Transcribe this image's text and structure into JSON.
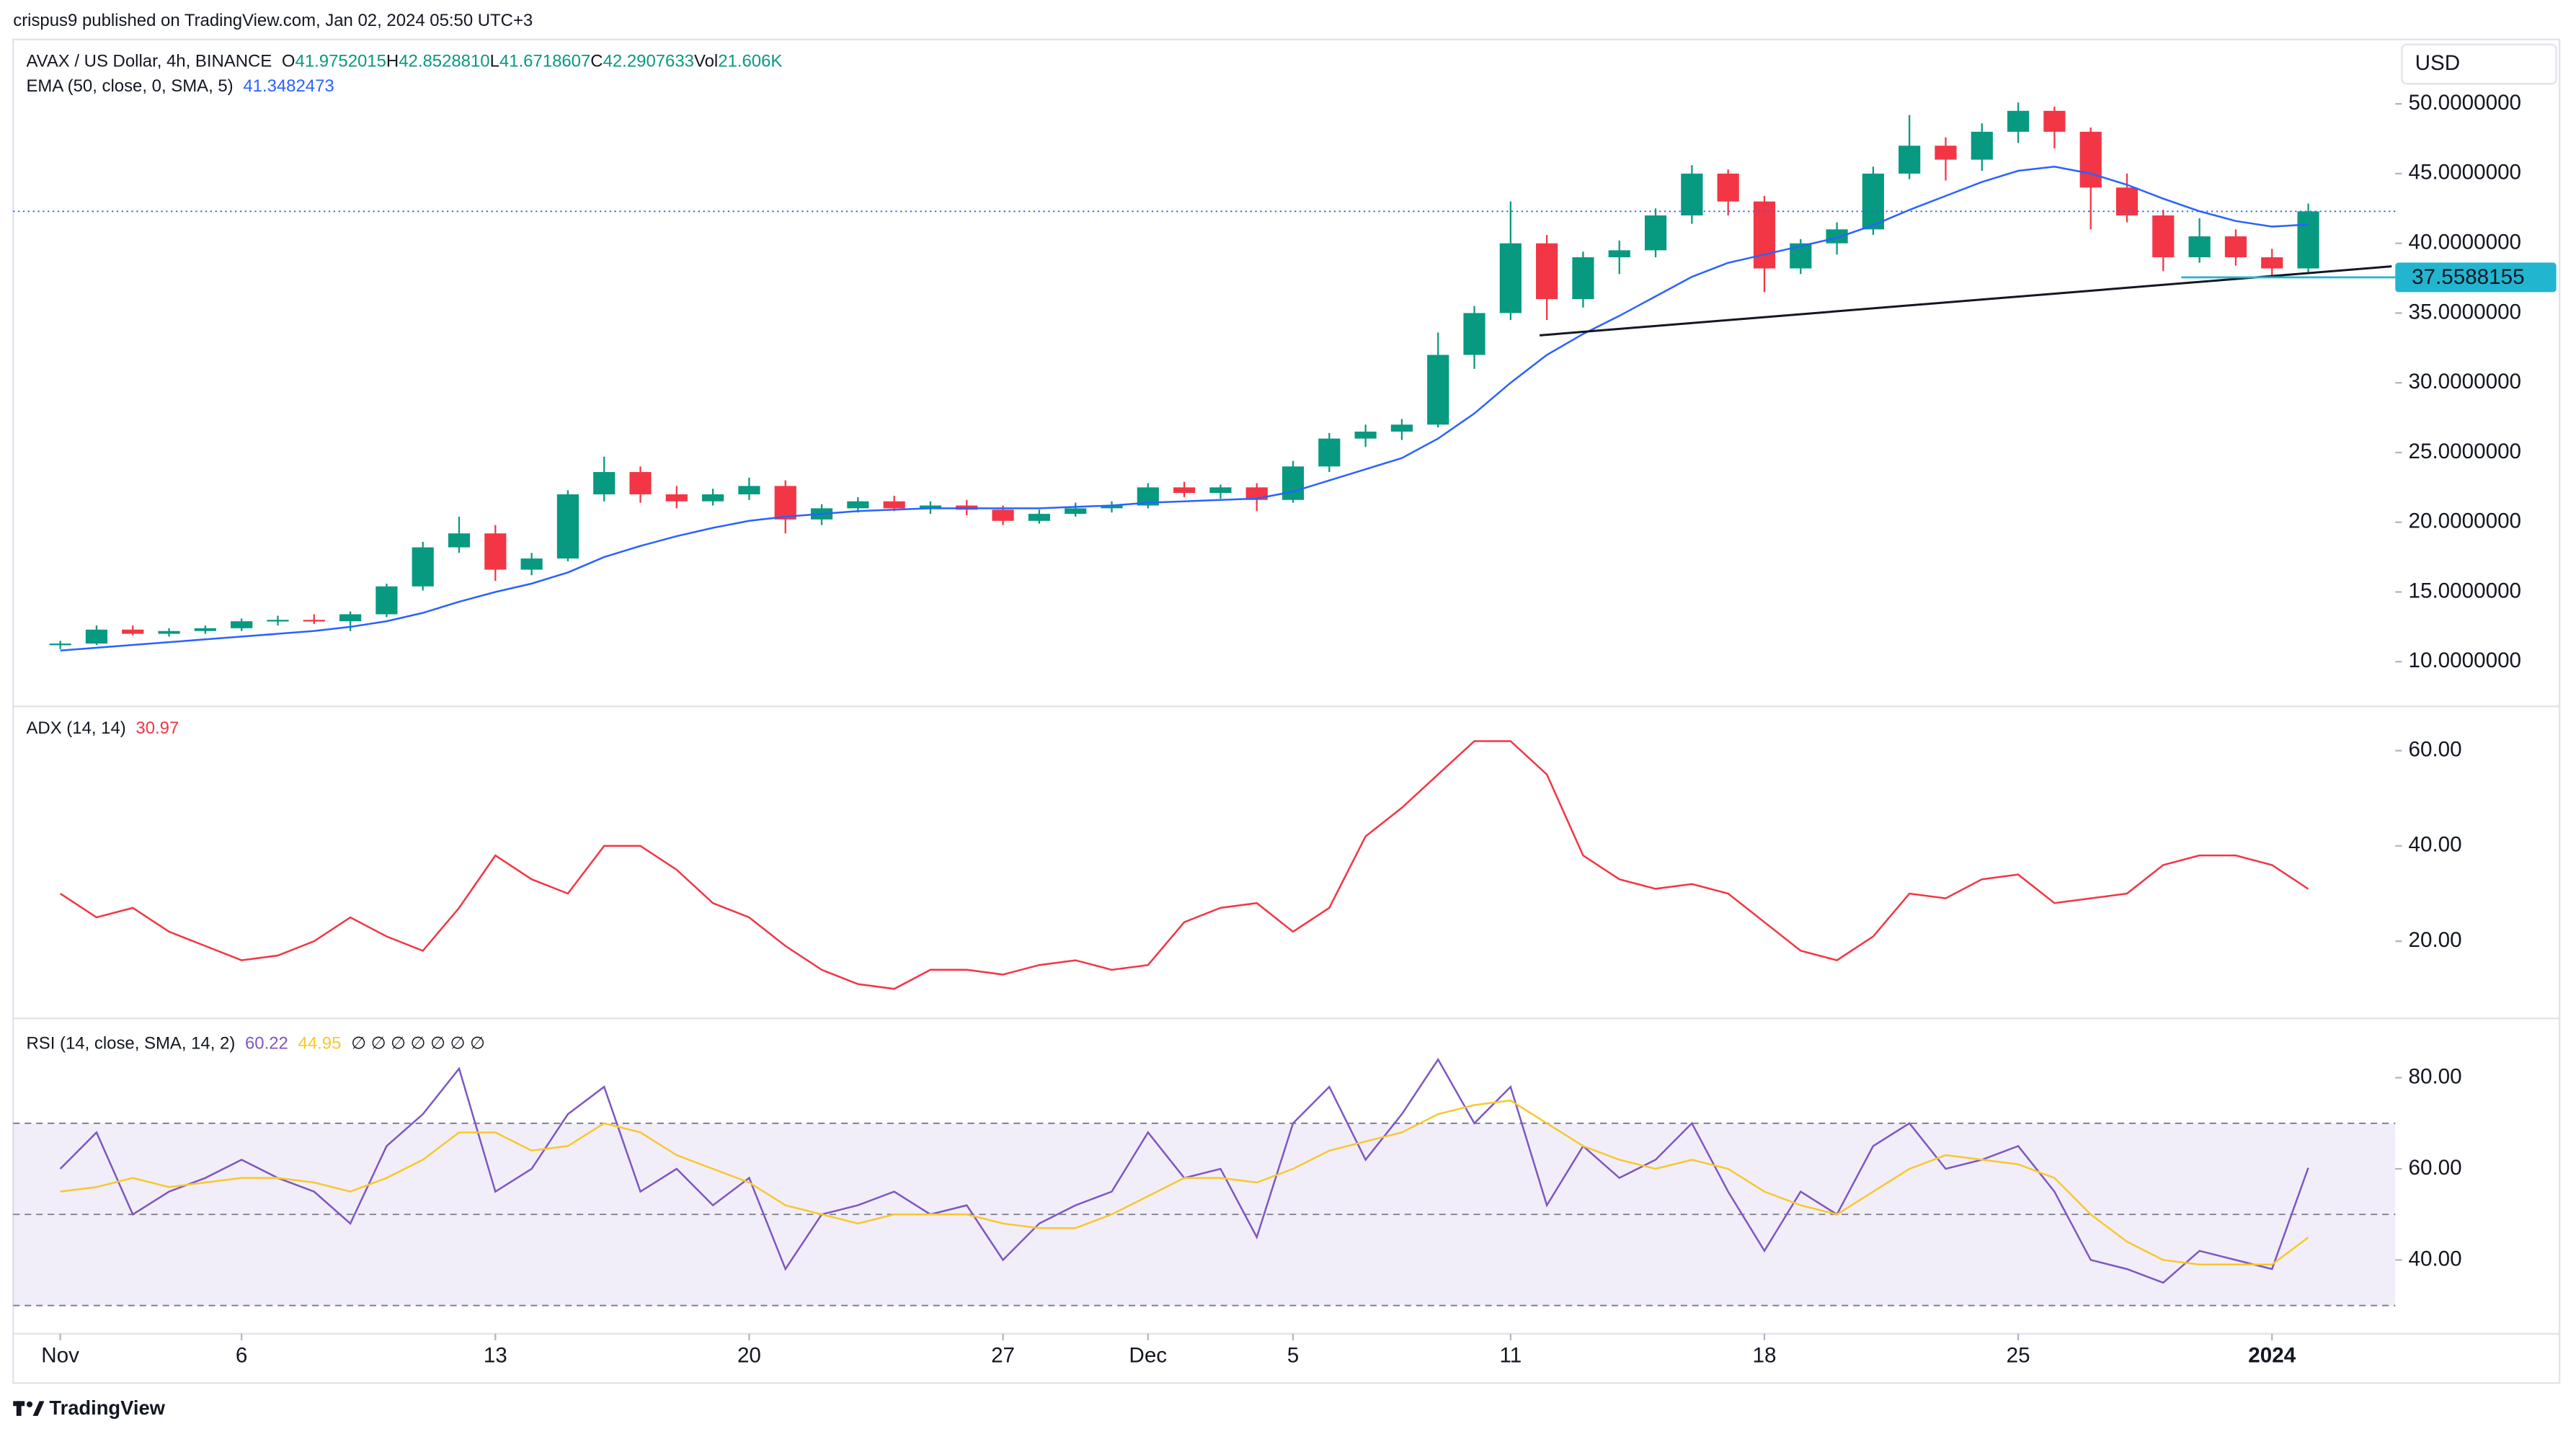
{
  "header": {
    "published": "crispus9 published on TradingView.com, Jan 02, 2024 05:50 UTC+3"
  },
  "footer": {
    "brand": "TradingView"
  },
  "chart_data": [
    {
      "type": "candlestick",
      "title": "AVAX / US Dollar, 4h, BINANCE",
      "ohlc_legend": [
        {
          "key": "O",
          "value": "41.9752015"
        },
        {
          "key": "H",
          "value": "42.8528810"
        },
        {
          "key": "L",
          "value": "41.6718607"
        },
        {
          "key": "C",
          "value": "42.2907633"
        },
        {
          "key": "Vol",
          "value": "21.606K"
        }
      ],
      "currency": "USD",
      "up_color": "#089981",
      "down_color": "#f23645",
      "x": [
        0,
        1,
        2,
        3,
        4,
        5,
        6,
        7,
        8,
        9,
        10,
        11,
        12,
        13,
        14,
        15,
        16,
        17,
        18,
        19,
        20,
        21,
        22,
        23,
        24,
        25,
        26,
        27,
        28,
        29,
        30,
        31,
        32,
        33,
        34,
        35,
        36,
        37,
        38,
        39,
        40,
        41,
        42,
        43,
        44,
        45,
        46,
        47,
        48,
        49,
        50,
        51,
        52,
        53,
        54,
        55,
        56,
        57,
        58,
        59,
        60,
        61,
        62
      ],
      "open": [
        11.2,
        11.3,
        12.3,
        12.0,
        12.2,
        12.4,
        12.9,
        13.0,
        12.9,
        13.4,
        15.4,
        18.2,
        19.2,
        16.6,
        17.4,
        22.0,
        23.6,
        22.0,
        21.5,
        22.0,
        22.6,
        20.2,
        21.0,
        21.5,
        21.0,
        21.2,
        20.9,
        20.1,
        20.6,
        21.0,
        21.2,
        22.5,
        22.1,
        22.5,
        21.6,
        24.0,
        26.0,
        26.5,
        27.0,
        32.0,
        35.0,
        40.0,
        36.0,
        39.0,
        39.5,
        42.0,
        45.0,
        43.0,
        38.2,
        40.0,
        41.0,
        45.0,
        47.0,
        46.0,
        48.0,
        49.5,
        48.0,
        44.0,
        42.0,
        39.0,
        40.5,
        39.0,
        38.2
      ],
      "high": [
        11.5,
        12.6,
        12.6,
        12.4,
        12.6,
        13.1,
        13.3,
        13.4,
        13.6,
        15.6,
        18.6,
        20.4,
        19.8,
        17.8,
        22.3,
        24.7,
        24.0,
        22.6,
        22.4,
        23.2,
        23.0,
        21.3,
        21.8,
        21.9,
        21.5,
        21.6,
        21.2,
        20.9,
        21.4,
        21.5,
        22.8,
        22.9,
        22.7,
        22.8,
        24.4,
        26.4,
        27.0,
        27.4,
        33.6,
        35.5,
        43.0,
        40.6,
        39.4,
        40.2,
        42.5,
        45.6,
        45.3,
        43.4,
        40.3,
        41.5,
        45.5,
        49.2,
        47.6,
        48.6,
        50.1,
        49.8,
        48.3,
        45.0,
        42.4,
        41.8,
        41.0,
        39.6,
        42.852881
      ],
      "low": [
        10.9,
        11.2,
        11.9,
        11.8,
        12.0,
        12.2,
        12.6,
        12.7,
        12.2,
        13.2,
        15.1,
        17.8,
        15.8,
        16.2,
        17.2,
        21.5,
        21.4,
        21.0,
        21.2,
        21.6,
        19.2,
        19.8,
        20.7,
        20.8,
        20.6,
        20.5,
        19.8,
        19.9,
        20.4,
        20.7,
        21.0,
        21.8,
        21.7,
        20.8,
        21.4,
        23.6,
        25.4,
        25.9,
        26.8,
        31.0,
        34.5,
        34.5,
        35.4,
        37.8,
        39.0,
        41.4,
        42.0,
        36.5,
        37.8,
        39.2,
        40.6,
        44.6,
        44.5,
        45.2,
        47.2,
        46.8,
        41.0,
        41.5,
        38.0,
        38.6,
        38.4,
        37.6,
        37.9
      ],
      "close": [
        11.3,
        12.3,
        12.0,
        12.2,
        12.4,
        12.9,
        13.0,
        12.9,
        13.4,
        15.4,
        18.2,
        19.2,
        16.6,
        17.4,
        22.0,
        23.6,
        22.0,
        21.5,
        22.0,
        22.6,
        20.2,
        21.0,
        21.5,
        21.0,
        21.2,
        20.9,
        20.1,
        20.6,
        21.0,
        21.2,
        22.5,
        22.1,
        22.5,
        21.6,
        24.0,
        26.0,
        26.5,
        27.0,
        32.0,
        35.0,
        40.0,
        36.0,
        39.0,
        39.5,
        42.0,
        45.0,
        43.0,
        38.2,
        40.0,
        41.0,
        45.0,
        47.0,
        46.0,
        48.0,
        49.5,
        48.0,
        44.0,
        42.0,
        39.0,
        40.5,
        39.0,
        38.2,
        42.2907633
      ],
      "series": [
        {
          "legend": "EMA (50, close, 0, SMA, 5)",
          "color": "#2962ff",
          "values": [
            10.8,
            11.0,
            11.2,
            11.4,
            11.6,
            11.8,
            12.0,
            12.2,
            12.5,
            12.9,
            13.5,
            14.3,
            15.0,
            15.6,
            16.4,
            17.5,
            18.3,
            19.0,
            19.6,
            20.1,
            20.4,
            20.6,
            20.8,
            20.9,
            21.0,
            21.0,
            21.0,
            21.0,
            21.1,
            21.2,
            21.4,
            21.5,
            21.6,
            21.7,
            22.2,
            23.0,
            23.8,
            24.6,
            26.0,
            27.8,
            30.0,
            32.0,
            33.5,
            34.8,
            36.2,
            37.6,
            38.6,
            39.2,
            39.8,
            40.4,
            41.3,
            42.4,
            43.4,
            44.4,
            45.2,
            45.5,
            45.0,
            44.2,
            43.2,
            42.3,
            41.6,
            41.2,
            41.3482473
          ]
        }
      ],
      "trendline": {
        "x": [
          40.8,
          64.3
        ],
        "y": [
          33.4,
          38.35
        ],
        "color": "#131722"
      },
      "support": {
        "value": 37.5588155,
        "x_start": 58.5,
        "color": "#22b5d0"
      },
      "xlim": [
        -1.3,
        64.4
      ],
      "xticks": [
        {
          "value": 0,
          "label": "Nov"
        },
        {
          "value": 5,
          "label": "6"
        },
        {
          "value": 12,
          "label": "13"
        },
        {
          "value": 19,
          "label": "20"
        },
        {
          "value": 26,
          "label": "27"
        },
        {
          "value": 30,
          "label": "Dec"
        },
        {
          "value": 34,
          "label": "5"
        },
        {
          "value": 40,
          "label": "11"
        },
        {
          "value": 47,
          "label": "18"
        },
        {
          "value": 54,
          "label": "25"
        },
        {
          "value": 61,
          "label": "2024"
        }
      ],
      "ylim": [
        6.8,
        54.5
      ],
      "yticks": [
        {
          "value": 10,
          "label": "10.0000000"
        },
        {
          "value": 15,
          "label": "15.0000000"
        },
        {
          "value": 20,
          "label": "20.0000000"
        },
        {
          "value": 25,
          "label": "25.0000000"
        },
        {
          "value": 30,
          "label": "30.0000000"
        },
        {
          "value": 35,
          "label": "35.0000000"
        },
        {
          "value": 40,
          "label": "40.0000000"
        },
        {
          "value": 45,
          "label": "45.0000000"
        },
        {
          "value": 50,
          "label": "50.0000000"
        }
      ],
      "grid": false
    },
    {
      "type": "line",
      "title": "ADX (14, 14)",
      "series": [
        {
          "color": "#f23645",
          "values": [
            30,
            25,
            27,
            22,
            19,
            16,
            17,
            20,
            25,
            21,
            18,
            27,
            38,
            33,
            30,
            40,
            40,
            35,
            28,
            25,
            19,
            14,
            11,
            10,
            14,
            14,
            13,
            15,
            16,
            14,
            15,
            24,
            27,
            28,
            22,
            27,
            42,
            48,
            55,
            62,
            62,
            55,
            38,
            33,
            31,
            32,
            30,
            24,
            18,
            16,
            21,
            30,
            29,
            33,
            34,
            28,
            29,
            30,
            36,
            38,
            38,
            36,
            30.97
          ]
        }
      ],
      "ylim": [
        3.8,
        69.3
      ],
      "yticks": [
        {
          "value": 20,
          "label": "20.00"
        },
        {
          "value": 40,
          "label": "40.00"
        },
        {
          "value": 60,
          "label": "60.00"
        }
      ],
      "grid": false
    },
    {
      "type": "line",
      "title": "RSI (14, close, SMA, 14, 2)",
      "legend_extra": "∅ ∅ ∅ ∅ ∅ ∅ ∅",
      "series": [
        {
          "color": "#7e57c2",
          "values": [
            60,
            68,
            50,
            55,
            58,
            62,
            58,
            55,
            48,
            65,
            72,
            82,
            55,
            60,
            72,
            78,
            55,
            60,
            52,
            58,
            38,
            50,
            52,
            55,
            50,
            52,
            40,
            48,
            52,
            55,
            68,
            58,
            60,
            45,
            70,
            78,
            62,
            72,
            84,
            70,
            78,
            52,
            65,
            58,
            62,
            70,
            55,
            42,
            55,
            50,
            65,
            70,
            60,
            62,
            65,
            55,
            40,
            38,
            35,
            42,
            40,
            38,
            60.22
          ]
        },
        {
          "color": "#f7c82f",
          "values": [
            55,
            56,
            58,
            56,
            57,
            58,
            58,
            57,
            55,
            58,
            62,
            68,
            68,
            64,
            65,
            70,
            68,
            63,
            60,
            57,
            52,
            50,
            48,
            50,
            50,
            50,
            48,
            47,
            47,
            50,
            54,
            58,
            58,
            57,
            60,
            64,
            66,
            68,
            72,
            74,
            75,
            70,
            65,
            62,
            60,
            62,
            60,
            55,
            52,
            50,
            55,
            60,
            63,
            62,
            61,
            58,
            50,
            44,
            40,
            39,
            39,
            39,
            44.95
          ]
        }
      ],
      "levels": [
        30,
        50,
        70
      ],
      "band_color": "#7e57c2",
      "ylim": [
        23.8,
        92.3
      ],
      "yticks": [
        {
          "value": 40,
          "label": "40.00"
        },
        {
          "value": 60,
          "label": "60.00"
        },
        {
          "value": 80,
          "label": "80.00"
        }
      ],
      "grid": false
    }
  ]
}
